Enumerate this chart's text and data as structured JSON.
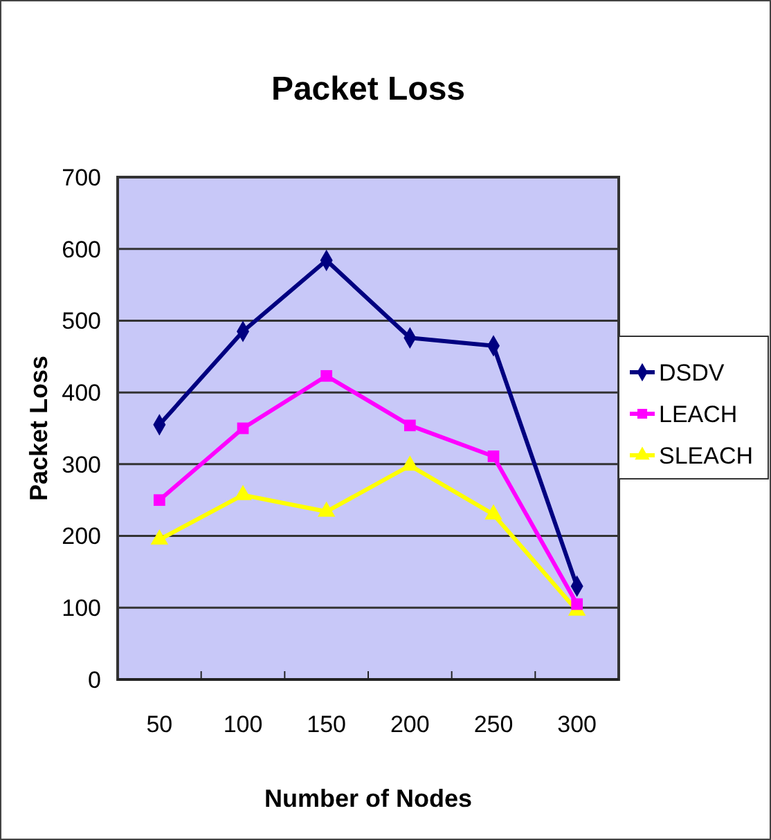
{
  "chart_data": {
    "type": "line",
    "title": "Packet Loss",
    "xlabel": "Number of Nodes",
    "ylabel": "Packet Loss",
    "categories": [
      "50",
      "100",
      "150",
      "200",
      "250",
      "300"
    ],
    "ylim": [
      0,
      700
    ],
    "yticks": [
      0,
      100,
      200,
      300,
      400,
      500,
      600,
      700
    ],
    "grid": "y",
    "legend": "right",
    "series": [
      {
        "name": "DSDV",
        "color": "#000080",
        "marker": "diamond",
        "values": [
          355,
          485,
          584,
          476,
          465,
          130
        ]
      },
      {
        "name": "LEACH",
        "color": "#ff00ff",
        "marker": "square",
        "values": [
          250,
          350,
          423,
          354,
          311,
          105
        ]
      },
      {
        "name": "SLEACH",
        "color": "#ffff00",
        "marker": "triangle",
        "values": [
          195,
          257,
          234,
          298,
          230,
          96
        ]
      }
    ]
  }
}
